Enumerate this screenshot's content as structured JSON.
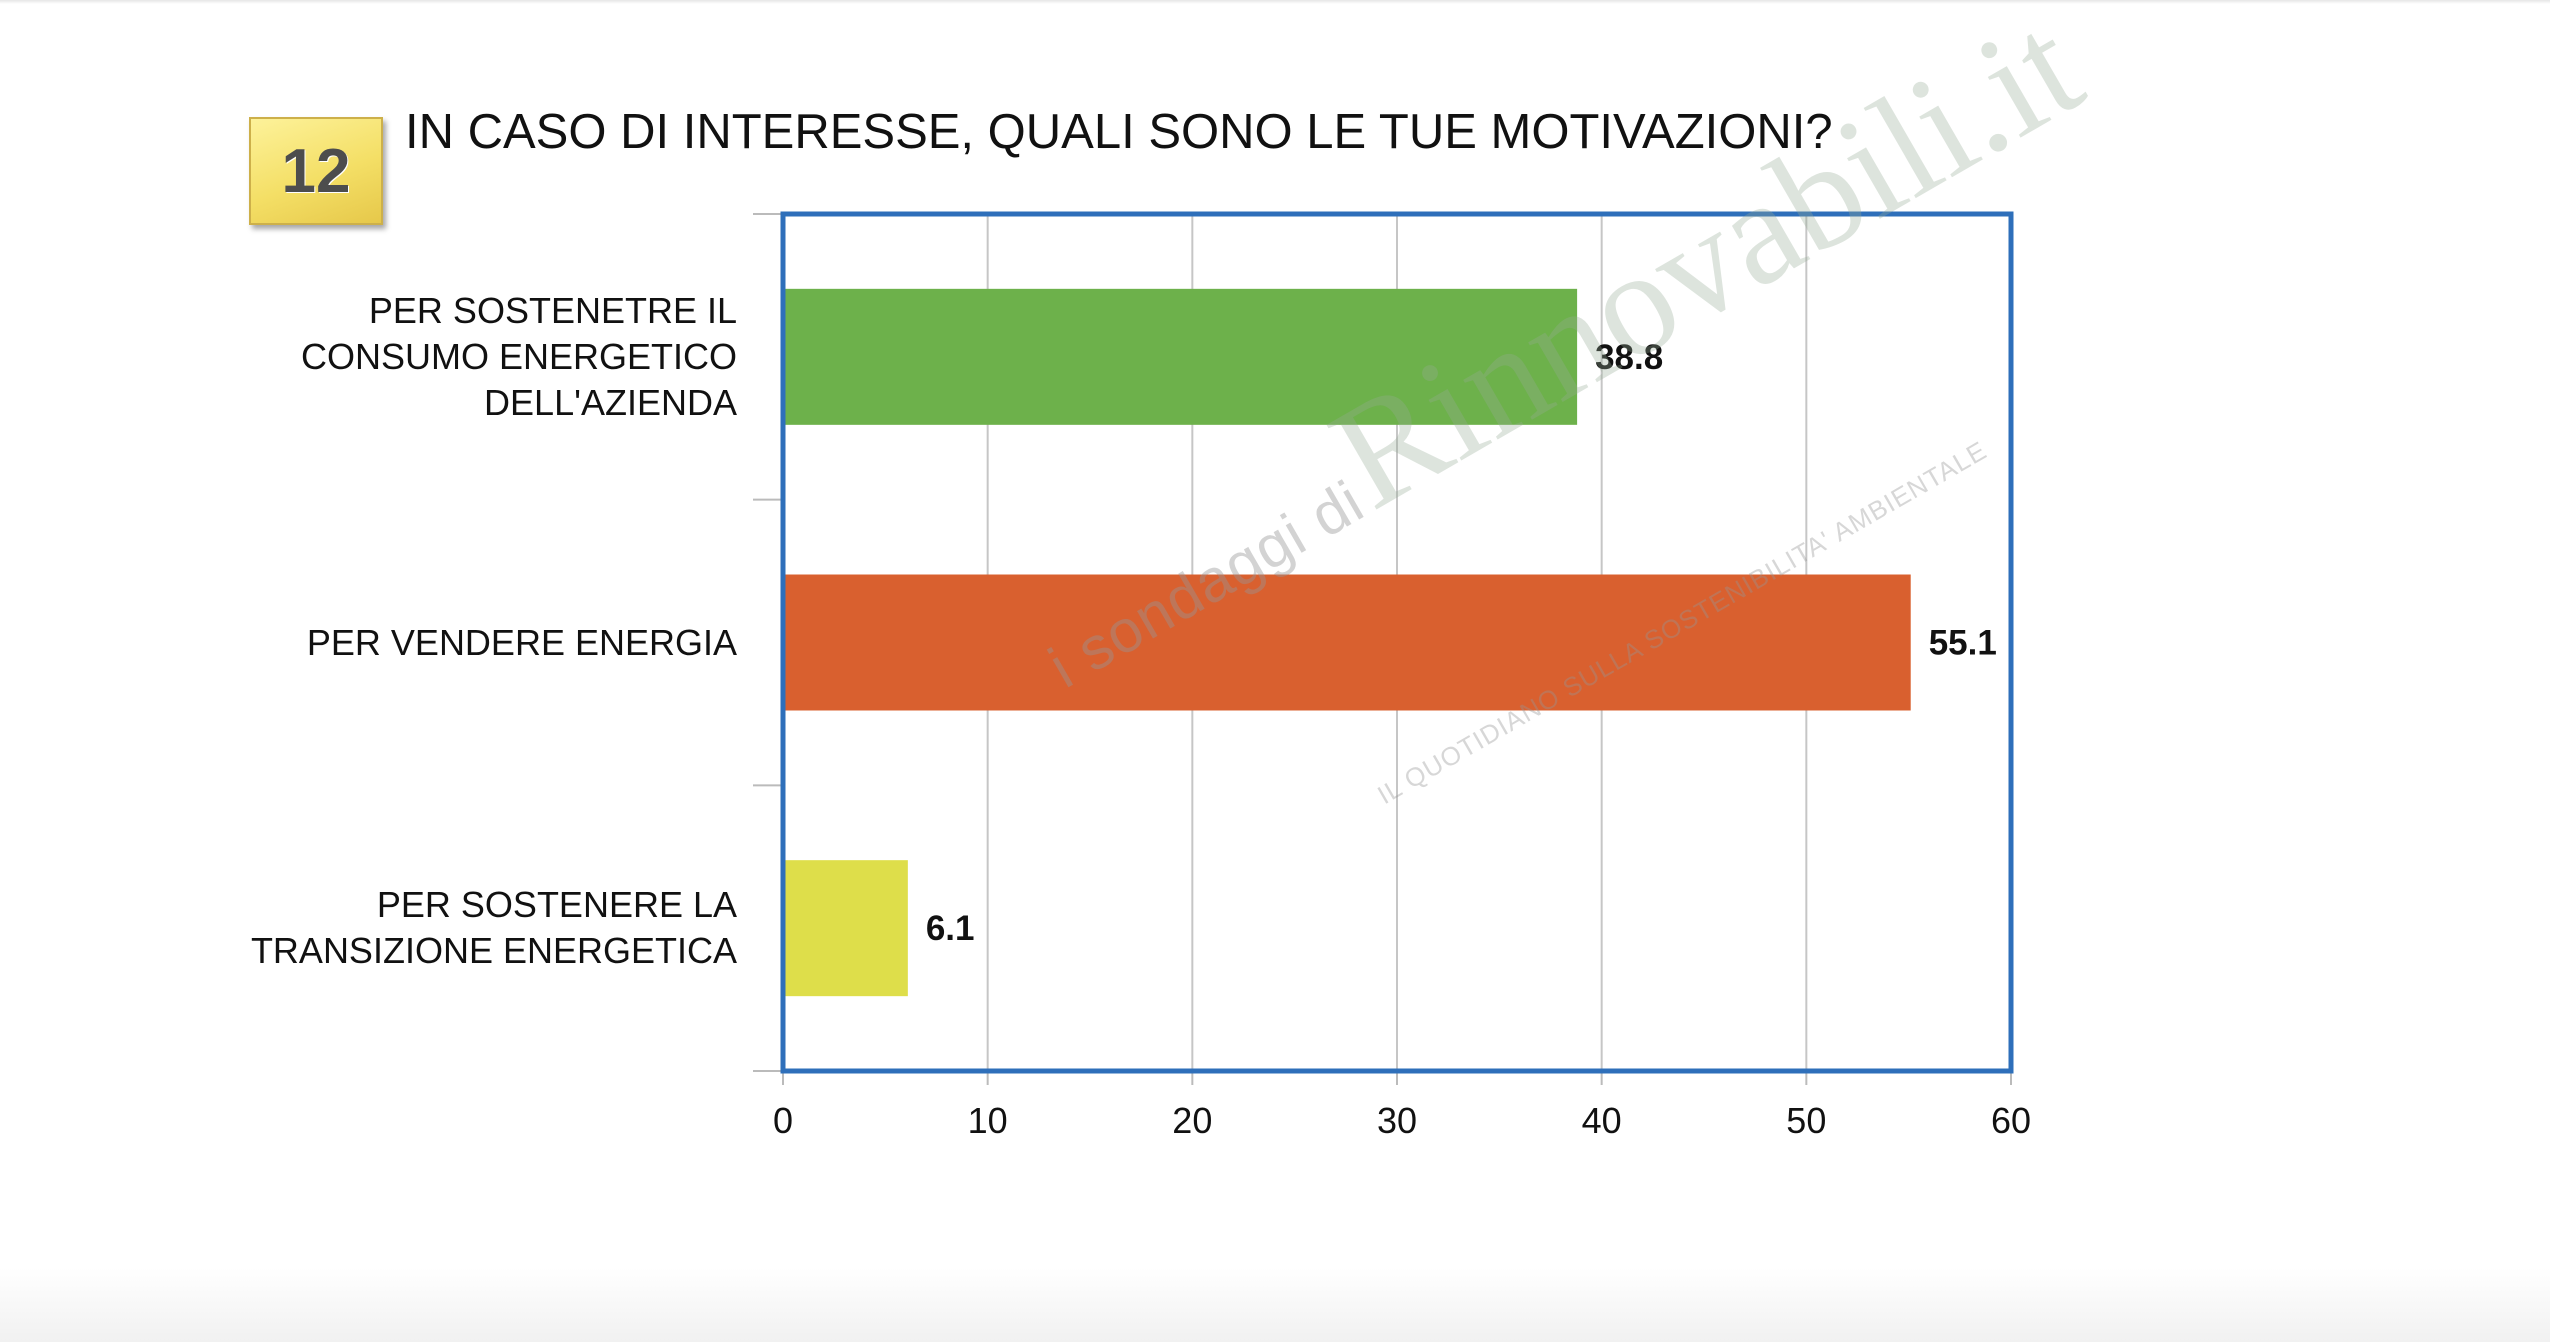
{
  "question": {
    "number": "12",
    "title": "IN CASO DI INTERESSE, QUALI SONO LE TUE MOTIVAZIONI?"
  },
  "watermark": {
    "prefix": "i sondaggi di",
    "brand": "Rinnovabili.it",
    "tagline": "IL QUOTIDIANO SULLA SOSTENIBILITA' AMBIENTALE"
  },
  "colors": {
    "frame": "#2e6fba",
    "grid": "#c6c6c6",
    "axis": "#999999"
  },
  "chart_data": {
    "type": "bar",
    "orientation": "horizontal",
    "categories": [
      "PER SOSTENETRE IL\nCONSUMO ENERGETICO\nDELL'AZIENDA",
      "PER VENDERE ENERGIA",
      "PER SOSTENERE LA\nTRANSIZIONE ENERGETICA"
    ],
    "values": [
      38.8,
      55.1,
      6.1
    ],
    "value_labels": [
      "38.8",
      "55.1",
      "6.1"
    ],
    "bar_colors": [
      "#6db14b",
      "#d9602f",
      "#dede4a"
    ],
    "xlim": [
      0,
      60
    ],
    "x_ticks": [
      0,
      10,
      20,
      30,
      40,
      50,
      60
    ],
    "grid": true,
    "legend": "none"
  }
}
